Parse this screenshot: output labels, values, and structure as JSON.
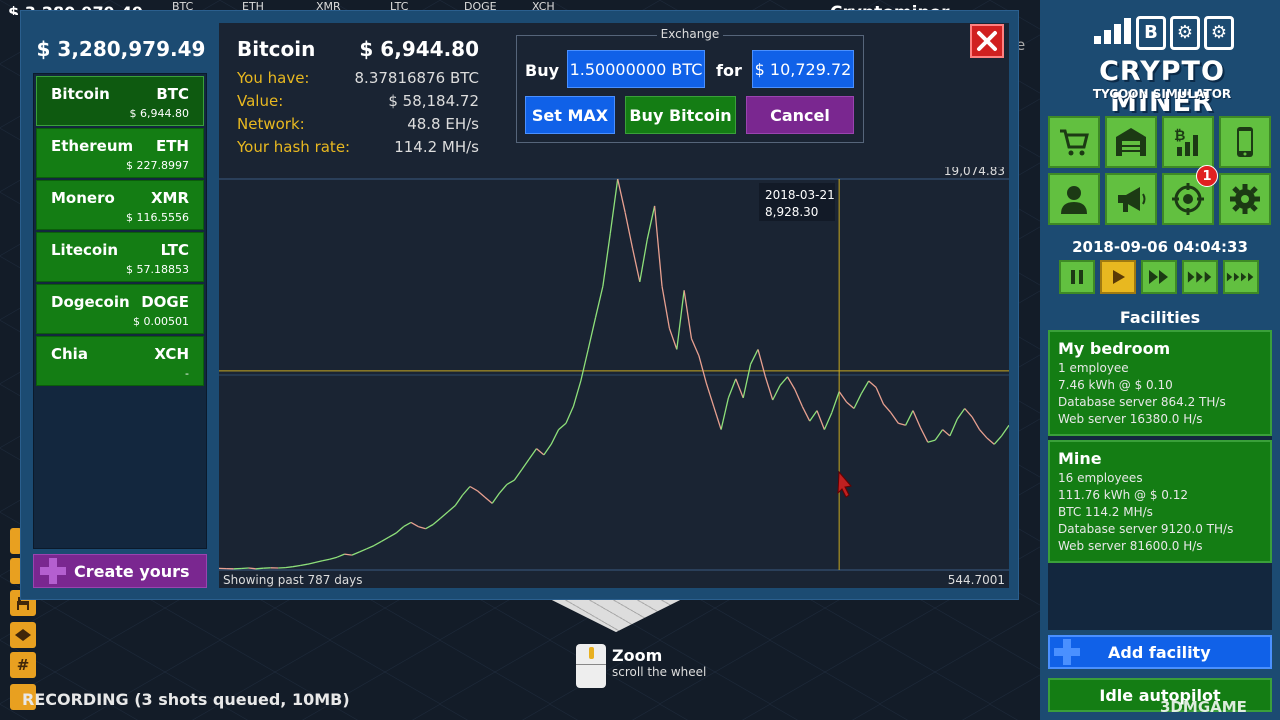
{
  "background": {
    "balance_fragment": "$ 3,280,979.49",
    "ticker": [
      "BTC",
      "ETH",
      "XMR",
      "LTC",
      "DOGE",
      "XCH"
    ],
    "title_fragment": "Cryptominer objective",
    "edge_letter": "e",
    "hint_zoom": "Zoom",
    "hint_wheel": "scroll the wheel",
    "recording": "RECORDING (3 shots queued, 10MB)",
    "watermark": "3DMGAME"
  },
  "sidebar": {
    "balance": "$ 3,280,979.49",
    "coins": [
      {
        "name": "Bitcoin",
        "symbol": "BTC",
        "price": "$ 6,944.80"
      },
      {
        "name": "Ethereum",
        "symbol": "ETH",
        "price": "$ 227.8997"
      },
      {
        "name": "Monero",
        "symbol": "XMR",
        "price": "$ 116.5556"
      },
      {
        "name": "Litecoin",
        "symbol": "LTC",
        "price": "$ 57.18853"
      },
      {
        "name": "Dogecoin",
        "symbol": "DOGE",
        "price": "$ 0.00501"
      },
      {
        "name": "Chia",
        "symbol": "XCH",
        "price": "-"
      }
    ],
    "create_label": "Create yours"
  },
  "coin_info": {
    "name": "Bitcoin",
    "price": "$ 6,944.80",
    "rows": [
      {
        "label": "You have:",
        "value": "8.37816876 BTC"
      },
      {
        "label": "Value:",
        "value": "$ 58,184.72"
      },
      {
        "label": "Network:",
        "value": "48.8 EH/s"
      },
      {
        "label": "Your hash rate:",
        "value": "114.2 MH/s"
      }
    ]
  },
  "exchange": {
    "title": "Exchange",
    "buy_label": "Buy",
    "buy_amount": "1.50000000 BTC",
    "for_label": "for",
    "cost": "$ 10,729.72",
    "set_max": "Set MAX",
    "buy_button": "Buy Bitcoin",
    "cancel": "Cancel"
  },
  "chart_data": {
    "type": "line",
    "title": "",
    "xlabel": "",
    "ylabel": "",
    "ylim": [
      544.7001,
      19074.83
    ],
    "max_label": "19,074.83",
    "min_label": "544.7001",
    "footer": "Showing past 787 days",
    "tooltip_date": "2018-03-21",
    "tooltip_value": "8,928.30",
    "crosshair_value": 8928.3,
    "crosshair_x_fraction": 0.785,
    "reference_line_value": 9980,
    "series": [
      {
        "values": [
          620,
          610,
          600,
          615,
          640,
          600,
          630,
          650,
          640,
          660,
          700,
          760,
          820,
          900,
          980,
          1050,
          1150,
          1300,
          1250,
          1400,
          1550,
          1700,
          1900,
          2100,
          2300,
          2600,
          2800,
          2600,
          2500,
          2700,
          3000,
          3300,
          3600,
          4100,
          4500,
          4300,
          4000,
          3700,
          4200,
          4600,
          4800,
          5300,
          5800,
          6300,
          6000,
          6500,
          7200,
          7500,
          8300,
          9500,
          11000,
          12500,
          14000,
          16500,
          19074,
          17500,
          15800,
          14200,
          16200,
          17800,
          14000,
          12000,
          11000,
          13800,
          11500,
          10700,
          9400,
          8300,
          7200,
          8700,
          9600,
          8700,
          10300,
          11000,
          9700,
          8600,
          9300,
          9700,
          9100,
          8300,
          7600,
          8100,
          7200,
          8000,
          9000,
          8500,
          8200,
          8900,
          9500,
          9200,
          8400,
          8000,
          7500,
          7400,
          8100,
          7300,
          6600,
          6700,
          7200,
          6900,
          7700,
          8200,
          7800,
          7200,
          6800,
          6500,
          6900,
          7400
        ]
      }
    ]
  },
  "right_panel": {
    "logo_title": "CRYPTO MINER",
    "logo_subtitle": "TYCOON SIMULATOR",
    "logo_chip_text": "B",
    "notification_count": "1",
    "datetime": "2018-09-06 04:04:33",
    "facilities_title": "Facilities",
    "facilities": [
      {
        "name": "My bedroom",
        "lines": [
          "1 employee",
          "7.46 kWh @ $ 0.10",
          "Database server 864.2 TH/s",
          "Web server 16380.0 H/s"
        ]
      },
      {
        "name": "Mine",
        "lines": [
          "16 employees",
          "111.76 kWh @ $ 0.12",
          "BTC 114.2 MH/s",
          "Database server 9120.0 TH/s",
          "Web server 81600.0 H/s"
        ]
      }
    ],
    "add_facility": "Add facility",
    "idle_autopilot": "Idle autopilot"
  },
  "colors": {
    "accent_green": "#147d14",
    "accent_blue": "#1061e8",
    "accent_purple": "#7a2790",
    "label_gold": "#e8b820"
  }
}
